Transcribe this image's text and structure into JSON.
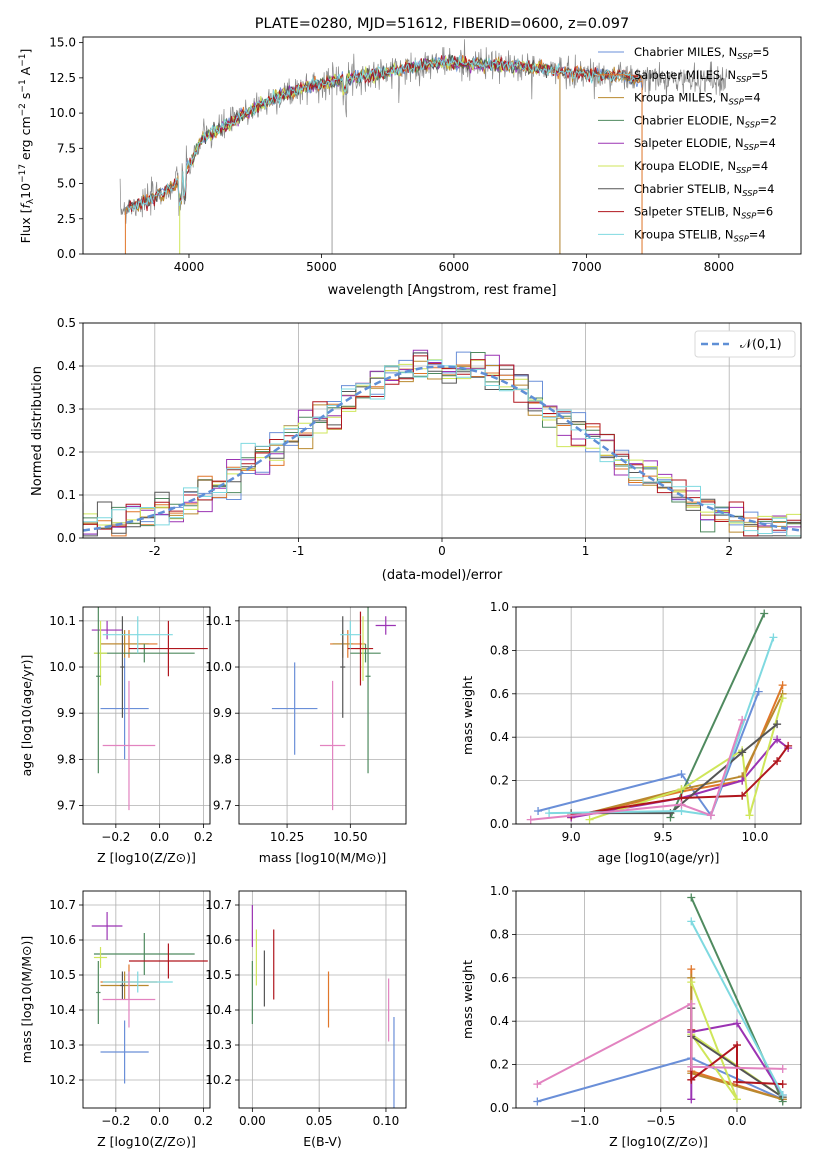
{
  "colors": {
    "Chabrier MILES": "#6a8fd8",
    "Salpeter MILES": "#e0762a",
    "Kroupa MILES": "#b9892f",
    "Chabrier ELODIE": "#4f8a5f",
    "Salpeter ELODIE": "#9b33b3",
    "Kroupa ELODIE": "#cfe65a",
    "Chabrier STELIB": "#555555",
    "Salpeter STELIB": "#b0161e",
    "Kroupa STELIB": "#7fd9e0",
    "pink": "#e283c0",
    "gauss": "#5f8fd6",
    "obs": "#888888"
  },
  "chart_data": [
    {
      "id": "spectrum",
      "type": "line",
      "title": "PLATE=0280, MJD=51612, FIBERID=0600, z=0.097",
      "xlabel": "wavelength [Angstrom, rest frame]",
      "ylabel": "Flux [f_λ10^-17 erg cm^-2 s^-1 A^-1]",
      "xlim": [
        3200,
        8620
      ],
      "ylim": [
        0,
        15.4
      ],
      "xticks": [
        4000,
        5000,
        6000,
        7000,
        8000
      ],
      "yticks": [
        0.0,
        2.5,
        5.0,
        7.5,
        10.0,
        12.5,
        15.0
      ],
      "legend": [
        {
          "label": "Chabrier MILES, N",
          "sub": "SSP",
          "tail": "=5",
          "key": "Chabrier MILES"
        },
        {
          "label": "Salpeter MILES, N",
          "sub": "SSP",
          "tail": "=5",
          "key": "Salpeter MILES"
        },
        {
          "label": "Kroupa MILES, N",
          "sub": "SSP",
          "tail": "=4",
          "key": "Kroupa MILES"
        },
        {
          "label": "Chabrier ELODIE, N",
          "sub": "SSP",
          "tail": "=2",
          "key": "Chabrier ELODIE"
        },
        {
          "label": "Salpeter ELODIE, N",
          "sub": "SSP",
          "tail": "=4",
          "key": "Salpeter ELODIE"
        },
        {
          "label": "Kroupa ELODIE, N",
          "sub": "SSP",
          "tail": "=4",
          "key": "Kroupa ELODIE"
        },
        {
          "label": "Chabrier STELIB, N",
          "sub": "SSP",
          "tail": "=4",
          "key": "Chabrier STELIB"
        },
        {
          "label": "Salpeter STELIB, N",
          "sub": "SSP",
          "tail": "=6",
          "key": "Salpeter STELIB"
        },
        {
          "label": "Kroupa STELIB, N",
          "sub": "SSP",
          "tail": "=4",
          "key": "Kroupa STELIB"
        }
      ],
      "continuum": [
        [
          3500,
          3.2
        ],
        [
          3700,
          3.8
        ],
        [
          3900,
          4.9
        ],
        [
          3990,
          6.0
        ],
        [
          4100,
          8.2
        ],
        [
          4300,
          9.2
        ],
        [
          4500,
          10.4
        ],
        [
          4700,
          11.3
        ],
        [
          4900,
          11.9
        ],
        [
          5100,
          12.3
        ],
        [
          5300,
          12.6
        ],
        [
          5500,
          12.9
        ],
        [
          5700,
          13.3
        ],
        [
          5900,
          13.6
        ],
        [
          6100,
          13.5
        ],
        [
          6300,
          13.4
        ],
        [
          6500,
          13.3
        ],
        [
          6700,
          13.1
        ],
        [
          6900,
          12.9
        ],
        [
          7100,
          12.7
        ],
        [
          7300,
          12.6
        ],
        [
          7400,
          12.4
        ]
      ],
      "spikes": [
        [
          5080,
          0
        ],
        [
          6800,
          0
        ],
        [
          7420,
          0
        ]
      ]
    },
    {
      "id": "residuals",
      "type": "histogram",
      "xlabel": "(data-model)/error",
      "ylabel": "Normed distribution",
      "xlim": [
        -2.5,
        2.5
      ],
      "ylim": [
        0,
        0.5
      ],
      "xticks": [
        -2,
        -1,
        0,
        1,
        2
      ],
      "yticks": [
        0.0,
        0.1,
        0.2,
        0.3,
        0.4,
        0.5
      ],
      "gauss_label": "𝒩(0,1)"
    },
    {
      "id": "age_vs_Z",
      "type": "scatter",
      "xlabel": "Z [log10(Z/Z⊙)]",
      "ylabel": "age  [log10(age/yr)]",
      "xlim": [
        -0.35,
        0.23
      ],
      "ylim": [
        9.66,
        10.13
      ],
      "xticks": [
        -0.2,
        0.0,
        0.2
      ],
      "xticklabels": [
        "−0.2",
        "0.0",
        "0.2"
      ],
      "yticks": [
        9.7,
        9.8,
        9.9,
        10.0,
        10.1
      ],
      "points": [
        {
          "c": "Chabrier MILES",
          "x": -0.16,
          "y": 9.91,
          "xe": 0.11,
          "ye": 0.11
        },
        {
          "c": "Salpeter MILES",
          "x": -0.14,
          "y": 10.05,
          "xe": 0.13,
          "ye": 0.03
        },
        {
          "c": "Kroupa MILES",
          "x": -0.16,
          "y": 10.05,
          "xe": 0.11,
          "ye": 0.03
        },
        {
          "c": "Chabrier ELODIE",
          "x": -0.07,
          "y": 10.03,
          "xe": 0.23,
          "ye": 0.02
        },
        {
          "c": "Salpeter ELODIE",
          "x": -0.24,
          "y": 10.08,
          "xe": 0.07,
          "ye": 0.02
        },
        {
          "c": "Kroupa ELODIE",
          "x": -0.27,
          "y": 10.03,
          "xe": 0.03,
          "ye": 0.07
        },
        {
          "c": "Chabrier STELIB",
          "x": -0.17,
          "y": 10.0,
          "xe": 0.01,
          "ye": 0.11
        },
        {
          "c": "Salpeter STELIB",
          "x": 0.04,
          "y": 10.04,
          "xe": 0.18,
          "ye": 0.06
        },
        {
          "c": "Kroupa STELIB",
          "x": -0.1,
          "y": 10.07,
          "xe": 0.16,
          "ye": 0.04
        },
        {
          "c": "pink",
          "x": -0.14,
          "y": 9.83,
          "xe": 0.12,
          "ye": 0.14
        },
        {
          "c": "Chabrier ELODIE",
          "x": -0.28,
          "y": 9.98,
          "xe": 0.01,
          "ye": 0.21
        }
      ]
    },
    {
      "id": "age_vs_mass",
      "type": "scatter",
      "xlabel": "mass [log10(M/M⊙)]",
      "xlim": [
        10.06,
        10.72
      ],
      "ylim": [
        9.66,
        10.13
      ],
      "xticks": [
        10.25,
        10.5
      ],
      "xticklabels": [
        "10.25",
        "10.50"
      ],
      "yticks": [
        9.7,
        9.8,
        9.9,
        10.0,
        10.1
      ],
      "points": [
        {
          "c": "Chabrier MILES",
          "x": 10.28,
          "y": 9.91,
          "xe": 0.09,
          "ye": 0.1
        },
        {
          "c": "Salpeter MILES",
          "x": 10.49,
          "y": 10.05,
          "xe": 0.07,
          "ye": 0.03
        },
        {
          "c": "Kroupa MILES",
          "x": 10.47,
          "y": 10.05,
          "xe": 0.04,
          "ye": 0.03
        },
        {
          "c": "Chabrier ELODIE",
          "x": 10.56,
          "y": 10.03,
          "xe": 0.06,
          "ye": 0.02
        },
        {
          "c": "Salpeter ELODIE",
          "x": 10.64,
          "y": 10.09,
          "xe": 0.04,
          "ye": 0.02
        },
        {
          "c": "Kroupa ELODIE",
          "x": 10.55,
          "y": 10.04,
          "xe": 0.03,
          "ye": 0.07
        },
        {
          "c": "Chabrier STELIB",
          "x": 10.47,
          "y": 10.0,
          "xe": 0.01,
          "ye": 0.11
        },
        {
          "c": "Salpeter STELIB",
          "x": 10.54,
          "y": 10.04,
          "xe": 0.05,
          "ye": 0.08
        },
        {
          "c": "Kroupa STELIB",
          "x": 10.5,
          "y": 10.07,
          "xe": 0.04,
          "ye": 0.03
        },
        {
          "c": "pink",
          "x": 10.43,
          "y": 9.83,
          "xe": 0.05,
          "ye": 0.14
        },
        {
          "c": "Chabrier ELODIE",
          "x": 10.57,
          "y": 9.98,
          "xe": 0.01,
          "ye": 0.21
        }
      ]
    },
    {
      "id": "mw_vs_age",
      "type": "line",
      "xlabel": "age  [log10(age/yr)]",
      "ylabel": "mass weight",
      "xlim": [
        8.7,
        10.25
      ],
      "ylim": [
        0,
        1.0
      ],
      "xticks": [
        9.0,
        9.5,
        10.0
      ],
      "xticklabels": [
        "9.0",
        "9.5",
        "10.0"
      ],
      "yticks": [
        0.0,
        0.2,
        0.4,
        0.6,
        0.8,
        1.0
      ],
      "yticklabels": [
        "0.0",
        "0.2",
        "0.4",
        "0.6",
        "0.8",
        "1.0"
      ],
      "series": [
        {
          "c": "Chabrier MILES",
          "pts": [
            [
              8.82,
              0.06
            ],
            [
              9.6,
              0.23
            ],
            [
              9.76,
              0.04
            ],
            [
              10.02,
              0.61
            ]
          ]
        },
        {
          "c": "Salpeter MILES",
          "pts": [
            [
              9.0,
              0.03
            ],
            [
              9.6,
              0.15
            ],
            [
              9.93,
              0.2
            ],
            [
              10.15,
              0.64
            ]
          ]
        },
        {
          "c": "Kroupa MILES",
          "pts": [
            [
              9.0,
              0.03
            ],
            [
              9.6,
              0.16
            ],
            [
              9.93,
              0.22
            ],
            [
              10.15,
              0.6
            ]
          ]
        },
        {
          "c": "Chabrier ELODIE",
          "pts": [
            [
              9.54,
              0.03
            ],
            [
              10.05,
              0.97
            ]
          ]
        },
        {
          "c": "Salpeter ELODIE",
          "pts": [
            [
              9.0,
              0.03
            ],
            [
              9.6,
              0.12
            ],
            [
              9.93,
              0.2
            ],
            [
              10.12,
              0.39
            ],
            [
              10.18,
              0.35
            ]
          ]
        },
        {
          "c": "Kroupa ELODIE",
          "pts": [
            [
              9.1,
              0.02
            ],
            [
              9.6,
              0.16
            ],
            [
              9.93,
              0.34
            ],
            [
              9.97,
              0.04
            ],
            [
              10.15,
              0.58
            ]
          ]
        },
        {
          "c": "Chabrier STELIB",
          "pts": [
            [
              9.0,
              0.05
            ],
            [
              9.54,
              0.05
            ],
            [
              9.93,
              0.33
            ],
            [
              10.12,
              0.46
            ]
          ]
        },
        {
          "c": "Salpeter STELIB",
          "pts": [
            [
              9.0,
              0.04
            ],
            [
              9.6,
              0.12
            ],
            [
              9.93,
              0.13
            ],
            [
              10.12,
              0.29
            ],
            [
              10.18,
              0.36
            ]
          ]
        },
        {
          "c": "Kroupa STELIB",
          "pts": [
            [
              8.88,
              0.05
            ],
            [
              9.6,
              0.06
            ],
            [
              9.76,
              0.04
            ],
            [
              10.1,
              0.86
            ]
          ]
        },
        {
          "c": "pink",
          "pts": [
            [
              8.78,
              0.02
            ],
            [
              9.6,
              0.09
            ],
            [
              9.76,
              0.04
            ],
            [
              9.93,
              0.48
            ]
          ]
        }
      ]
    },
    {
      "id": "mass_vs_Z",
      "type": "scatter",
      "xlabel": "Z [log10(Z/Z⊙)]",
      "ylabel": "mass [log10(M/M⊙)]",
      "xlim": [
        -0.35,
        0.23
      ],
      "ylim": [
        10.12,
        10.74
      ],
      "xticks": [
        -0.2,
        0.0,
        0.2
      ],
      "xticklabels": [
        "−0.2",
        "0.0",
        "0.2"
      ],
      "yticks": [
        10.2,
        10.3,
        10.4,
        10.5,
        10.6,
        10.7
      ],
      "points": [
        {
          "c": "Chabrier MILES",
          "x": -0.16,
          "y": 10.28,
          "xe": 0.11,
          "ye": 0.09
        },
        {
          "c": "Salpeter MILES",
          "x": -0.14,
          "y": 10.48,
          "xe": 0.13,
          "ye": 0.05
        },
        {
          "c": "Kroupa MILES",
          "x": -0.16,
          "y": 10.47,
          "xe": 0.11,
          "ye": 0.04
        },
        {
          "c": "Chabrier ELODIE",
          "x": -0.07,
          "y": 10.56,
          "xe": 0.23,
          "ye": 0.06
        },
        {
          "c": "Salpeter ELODIE",
          "x": -0.24,
          "y": 10.64,
          "xe": 0.07,
          "ye": 0.04
        },
        {
          "c": "Kroupa ELODIE",
          "x": -0.27,
          "y": 10.55,
          "xe": 0.03,
          "ye": 0.03
        },
        {
          "c": "Chabrier STELIB",
          "x": -0.17,
          "y": 10.47,
          "xe": 0.01,
          "ye": 0.04
        },
        {
          "c": "Salpeter STELIB",
          "x": 0.04,
          "y": 10.54,
          "xe": 0.18,
          "ye": 0.05
        },
        {
          "c": "Kroupa STELIB",
          "x": -0.1,
          "y": 10.48,
          "xe": 0.16,
          "ye": 0.03
        },
        {
          "c": "pink",
          "x": -0.14,
          "y": 10.43,
          "xe": 0.12,
          "ye": 0.08
        },
        {
          "c": "Chabrier ELODIE",
          "x": -0.28,
          "y": 10.45,
          "xe": 0.01,
          "ye": 0.09
        }
      ]
    },
    {
      "id": "mass_vs_ebv",
      "type": "scatter",
      "xlabel": "E(B-V)",
      "xlim": [
        -0.01,
        0.115
      ],
      "ylim": [
        10.12,
        10.74
      ],
      "xticks": [
        0.0,
        0.05,
        0.1
      ],
      "xticklabels": [
        "0.00",
        "0.05",
        "0.10"
      ],
      "yticks": [
        10.2,
        10.3,
        10.4,
        10.5,
        10.6,
        10.7
      ],
      "points": [
        {
          "c": "Salpeter ELODIE",
          "x": 0.0,
          "y": 10.64,
          "xe": 0,
          "ye": 0.06
        },
        {
          "c": "Kroupa ELODIE",
          "x": 0.003,
          "y": 10.55,
          "xe": 0,
          "ye": 0.08
        },
        {
          "c": "Chabrier ELODIE",
          "x": 0.0,
          "y": 10.45,
          "xe": 0,
          "ye": 0.09
        },
        {
          "c": "Chabrier STELIB",
          "x": 0.009,
          "y": 10.49,
          "xe": 0,
          "ye": 0.08
        },
        {
          "c": "Salpeter STELIB",
          "x": 0.016,
          "y": 10.53,
          "xe": 0,
          "ye": 0.1
        },
        {
          "c": "Salpeter MILES",
          "x": 0.057,
          "y": 10.43,
          "xe": 0,
          "ye": 0.08
        },
        {
          "c": "pink",
          "x": 0.102,
          "y": 10.4,
          "xe": 0,
          "ye": 0.09
        },
        {
          "c": "Chabrier MILES",
          "x": 0.106,
          "y": 10.25,
          "xe": 0,
          "ye": 0.13
        }
      ]
    },
    {
      "id": "mw_vs_Z",
      "type": "line",
      "xlabel": "Z [log10(Z/Z⊙)]",
      "ylabel": "mass weight",
      "xlim": [
        -1.45,
        0.42
      ],
      "ylim": [
        0,
        1.0
      ],
      "xticks": [
        -1.0,
        -0.5,
        0.0
      ],
      "xticklabels": [
        "−1.0",
        "−0.5",
        "0.0"
      ],
      "yticks": [
        0.0,
        0.2,
        0.4,
        0.6,
        0.8,
        1.0
      ],
      "yticklabels": [
        "0.0",
        "0.2",
        "0.4",
        "0.6",
        "0.8",
        "1.0"
      ],
      "series": [
        {
          "c": "Chabrier MILES",
          "pts": [
            [
              -1.31,
              0.03
            ],
            [
              -0.3,
              0.23
            ],
            [
              0.3,
              0.04
            ]
          ]
        },
        {
          "c": "Salpeter MILES",
          "pts": [
            [
              -0.3,
              0.64
            ],
            [
              -0.3,
              0.17
            ],
            [
              0.3,
              0.04
            ]
          ]
        },
        {
          "c": "Kroupa MILES",
          "pts": [
            [
              -0.3,
              0.6
            ],
            [
              -0.3,
              0.16
            ],
            [
              0.3,
              0.04
            ]
          ]
        },
        {
          "c": "Chabrier ELODIE",
          "pts": [
            [
              -0.3,
              0.97
            ],
            [
              0.3,
              0.03
            ]
          ]
        },
        {
          "c": "Salpeter ELODIE",
          "pts": [
            [
              -0.3,
              0.04
            ],
            [
              -0.3,
              0.35
            ],
            [
              0.0,
              0.39
            ],
            [
              0.3,
              0.06
            ]
          ]
        },
        {
          "c": "Kroupa ELODIE",
          "pts": [
            [
              -0.3,
              0.58
            ],
            [
              0.0,
              0.04
            ],
            [
              -0.3,
              0.34
            ],
            [
              0.3,
              0.05
            ]
          ]
        },
        {
          "c": "Chabrier STELIB",
          "pts": [
            [
              -0.3,
              0.46
            ],
            [
              -0.3,
              0.33
            ],
            [
              0.3,
              0.05
            ]
          ]
        },
        {
          "c": "Salpeter STELIB",
          "pts": [
            [
              -0.3,
              0.36
            ],
            [
              -0.3,
              0.13
            ],
            [
              0.0,
              0.29
            ],
            [
              0.0,
              0.12
            ],
            [
              0.3,
              0.11
            ]
          ]
        },
        {
          "c": "Kroupa STELIB",
          "pts": [
            [
              -0.3,
              0.86
            ],
            [
              0.3,
              0.06
            ]
          ]
        },
        {
          "c": "pink",
          "pts": [
            [
              -1.31,
              0.11
            ],
            [
              -0.3,
              0.48
            ],
            [
              -0.3,
              0.19
            ],
            [
              0.3,
              0.18
            ]
          ]
        }
      ]
    }
  ]
}
